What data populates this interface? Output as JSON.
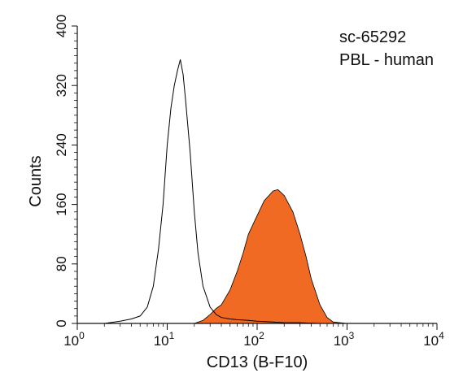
{
  "chart_data": {
    "type": "area",
    "xlabel": "CD13 (B-F10)",
    "ylabel": "Counts",
    "x_scale": "log",
    "xlim": [
      1,
      10000
    ],
    "ylim": [
      0,
      400
    ],
    "x_ticks": [
      {
        "value": 1,
        "base": "10",
        "exp": "0"
      },
      {
        "value": 10,
        "base": "10",
        "exp": "1"
      },
      {
        "value": 100,
        "base": "10",
        "exp": "2"
      },
      {
        "value": 1000,
        "base": "10",
        "exp": "3"
      },
      {
        "value": 10000,
        "base": "10",
        "exp": "4"
      }
    ],
    "y_ticks": [
      "0",
      "80",
      "160",
      "240",
      "320",
      "400"
    ],
    "annotations": [
      "sc-65292",
      "PBL - human"
    ],
    "grid": false,
    "series": [
      {
        "style": "outline",
        "color": "#000000",
        "x": [
          1,
          2,
          3,
          4,
          5,
          6,
          7,
          8,
          9,
          10,
          11,
          12,
          13,
          14,
          15,
          16,
          18,
          20,
          22,
          25,
          30,
          35,
          40,
          50,
          60,
          80,
          100,
          150,
          200,
          300,
          500,
          1000,
          10000
        ],
        "y": [
          0,
          0,
          3,
          6,
          10,
          22,
          50,
          100,
          160,
          240,
          290,
          320,
          340,
          355,
          335,
          300,
          230,
          150,
          95,
          50,
          22,
          12,
          8,
          6,
          5,
          4,
          3,
          2,
          1,
          1,
          0,
          0,
          0
        ]
      },
      {
        "style": "filled",
        "color": "#f06a23",
        "x": [
          1,
          20,
          25,
          30,
          35,
          40,
          50,
          60,
          70,
          80,
          100,
          120,
          150,
          170,
          200,
          250,
          300,
          350,
          400,
          500,
          600,
          700,
          1000,
          10000
        ],
        "y": [
          0,
          0,
          4,
          12,
          20,
          25,
          45,
          70,
          95,
          120,
          145,
          165,
          178,
          180,
          172,
          150,
          120,
          90,
          60,
          25,
          8,
          2,
          0,
          0
        ]
      }
    ]
  }
}
